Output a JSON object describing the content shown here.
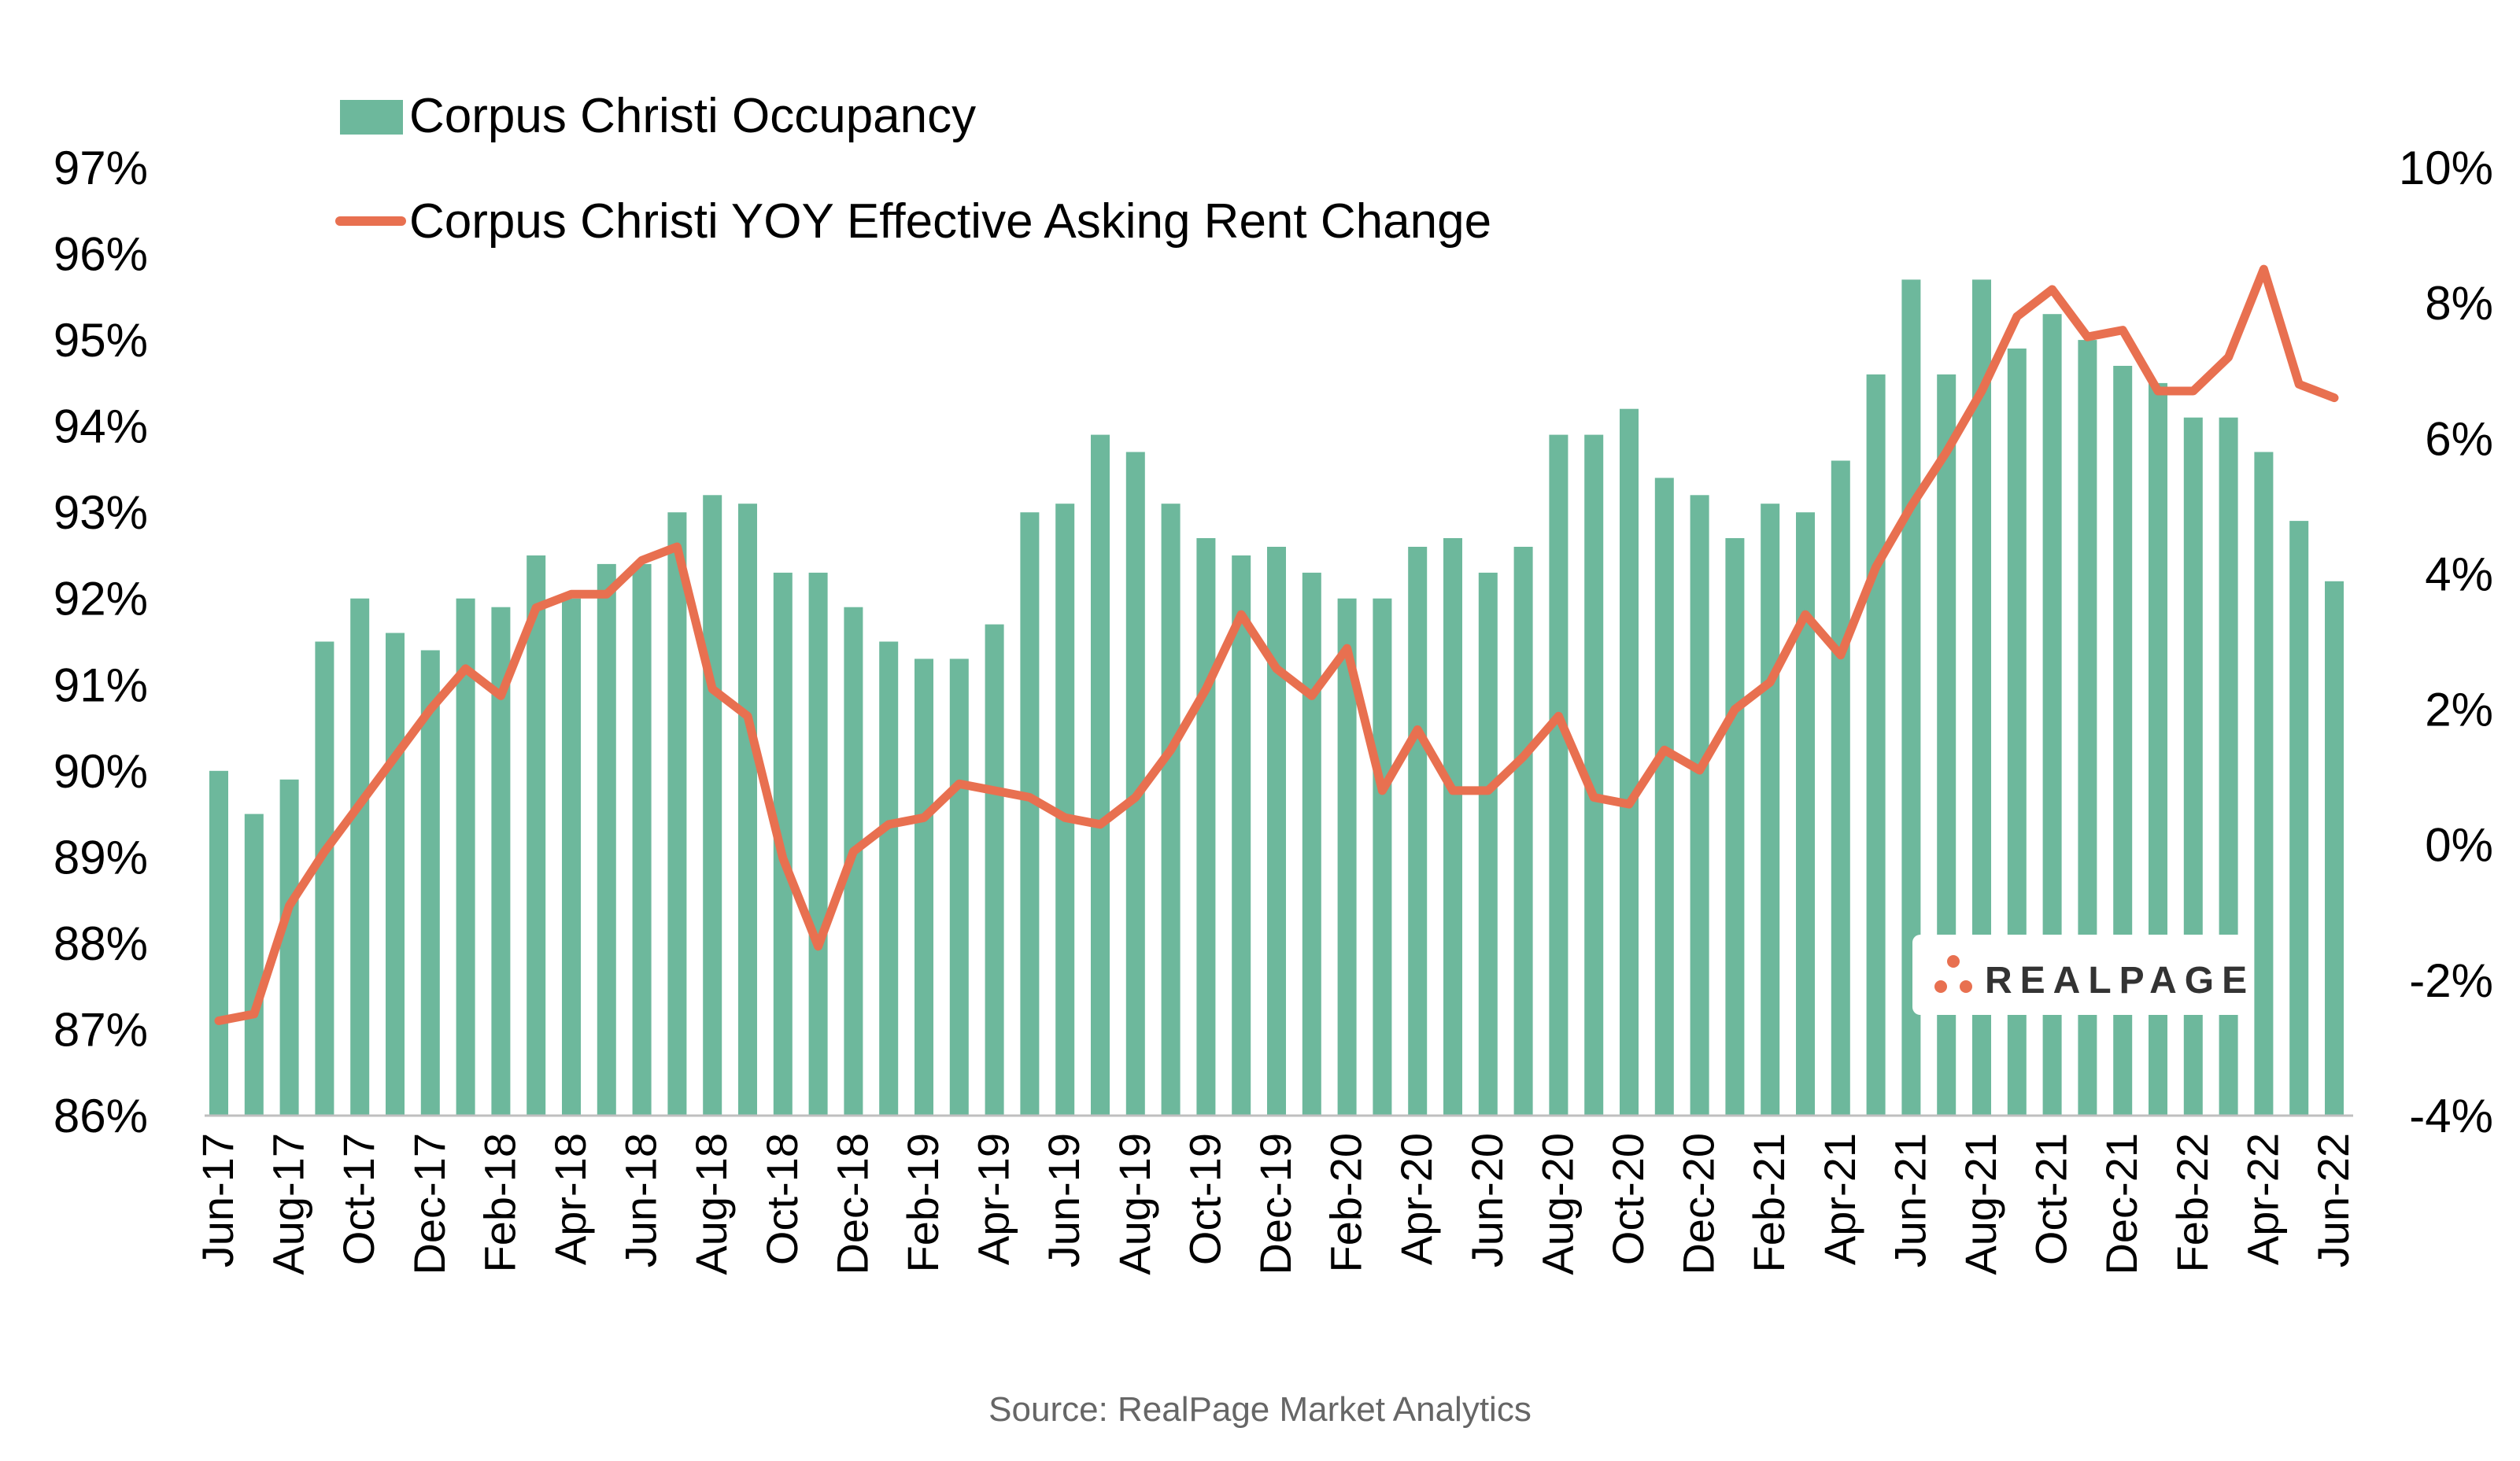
{
  "chart_data": {
    "type": "bar",
    "title": "",
    "xlabel": "",
    "ylabel": "",
    "categories": [
      "Jun-17",
      "Jul-17",
      "Aug-17",
      "Sep-17",
      "Oct-17",
      "Nov-17",
      "Dec-17",
      "Jan-18",
      "Feb-18",
      "Mar-18",
      "Apr-18",
      "May-18",
      "Jun-18",
      "Jul-18",
      "Aug-18",
      "Sep-18",
      "Oct-18",
      "Nov-18",
      "Dec-18",
      "Jan-19",
      "Feb-19",
      "Mar-19",
      "Apr-19",
      "May-19",
      "Jun-19",
      "Jul-19",
      "Aug-19",
      "Sep-19",
      "Oct-19",
      "Nov-19",
      "Dec-19",
      "Jan-20",
      "Feb-20",
      "Mar-20",
      "Apr-20",
      "May-20",
      "Jun-20",
      "Jul-20",
      "Aug-20",
      "Sep-20",
      "Oct-20",
      "Nov-20",
      "Dec-20",
      "Jan-21",
      "Feb-21",
      "Mar-21",
      "Apr-21",
      "May-21",
      "Jun-21",
      "Jul-21",
      "Aug-21",
      "Sep-21",
      "Oct-21",
      "Nov-21",
      "Dec-21",
      "Jan-22",
      "Feb-22",
      "Mar-22",
      "Apr-22",
      "May-22",
      "Jun-22"
    ],
    "x_tick_labels": [
      "Jun-17",
      "Aug-17",
      "Oct-17",
      "Dec-17",
      "Feb-18",
      "Apr-18",
      "Jun-18",
      "Aug-18",
      "Oct-18",
      "Dec-18",
      "Feb-19",
      "Apr-19",
      "Jun-19",
      "Aug-19",
      "Oct-19",
      "Dec-19",
      "Feb-20",
      "Apr-20",
      "Jun-20",
      "Aug-20",
      "Oct-20",
      "Dec-20",
      "Feb-21",
      "Apr-21",
      "Jun-21",
      "Aug-21",
      "Oct-21",
      "Dec-21",
      "Feb-22",
      "Apr-22",
      "Jun-22"
    ],
    "series": [
      {
        "name": "Corpus Christi Occupancy",
        "type": "bar",
        "axis": "left",
        "color": "#6db89c",
        "values": [
          90.0,
          89.5,
          89.9,
          91.5,
          92.0,
          91.6,
          91.4,
          92.0,
          91.9,
          92.5,
          92.0,
          92.4,
          92.4,
          93.0,
          93.2,
          93.1,
          92.3,
          92.3,
          91.9,
          91.5,
          91.3,
          91.3,
          91.7,
          93.0,
          93.1,
          93.9,
          93.7,
          93.1,
          92.7,
          92.5,
          92.6,
          92.3,
          92.0,
          92.0,
          92.6,
          92.7,
          92.3,
          92.6,
          93.9,
          93.9,
          94.2,
          93.4,
          93.2,
          92.7,
          93.1,
          93.0,
          93.6,
          94.6,
          95.7,
          94.6,
          95.7,
          94.9,
          95.3,
          95.0,
          94.7,
          94.5,
          94.1,
          94.1,
          93.7,
          92.9,
          92.2
        ]
      },
      {
        "name": "Corpus Christi YOY Effective Asking Rent Change",
        "type": "line",
        "axis": "right",
        "color": "#e87050",
        "values": [
          -2.6,
          -2.5,
          -0.9,
          -0.1,
          0.6,
          1.3,
          2.0,
          2.6,
          2.2,
          3.5,
          3.7,
          3.7,
          4.2,
          4.4,
          2.3,
          1.9,
          -0.2,
          -1.5,
          -0.1,
          0.3,
          0.4,
          0.9,
          0.8,
          0.7,
          0.4,
          0.3,
          0.7,
          1.4,
          2.3,
          3.4,
          2.6,
          2.2,
          2.9,
          0.8,
          1.7,
          0.8,
          0.8,
          1.3,
          1.9,
          0.7,
          0.6,
          1.4,
          1.1,
          2.0,
          2.4,
          3.4,
          2.8,
          4.1,
          5.0,
          5.8,
          6.7,
          7.8,
          8.2,
          7.5,
          7.6,
          6.7,
          6.7,
          7.2,
          8.5,
          6.8,
          6.6
        ]
      }
    ],
    "y_left": {
      "ylim": [
        86,
        97
      ],
      "ticks": [
        86,
        87,
        88,
        89,
        90,
        91,
        92,
        93,
        94,
        95,
        96,
        97
      ],
      "format": "%"
    },
    "y_right": {
      "ylim": [
        -4,
        10
      ],
      "ticks": [
        -4,
        -2,
        0,
        2,
        4,
        6,
        8,
        10
      ],
      "format": "%"
    },
    "legend_position": "top-left",
    "grid": false
  },
  "legend": {
    "occupancy_label": "Corpus Christi Occupancy",
    "rent_label": "Corpus Christi YOY Effective Asking Rent Change"
  },
  "logo": {
    "text": "REALPAGE"
  },
  "source": "Source: RealPage Market Analytics",
  "colors": {
    "bar": "#6db89c",
    "line": "#e87050",
    "axis": "#bfbfbf"
  }
}
